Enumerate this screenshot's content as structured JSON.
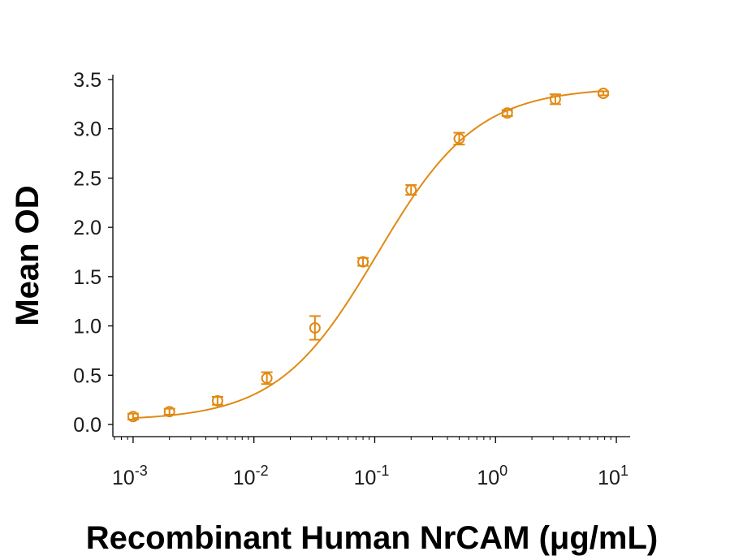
{
  "chart_data": {
    "type": "scatter",
    "title": "",
    "xlabel": "Recombinant Human NrCAM (μg/mL)",
    "ylabel": "Mean OD",
    "xscale": "log",
    "xlim": [
      0.00068,
      13
    ],
    "ylim": [
      -0.12,
      3.6
    ],
    "grid": false,
    "legend": "none",
    "color": "#E08A14",
    "yticks": [
      {
        "value": 0.0,
        "label": "0.0"
      },
      {
        "value": 0.5,
        "label": "0.5"
      },
      {
        "value": 1.0,
        "label": "1.0"
      },
      {
        "value": 1.5,
        "label": "1.5"
      },
      {
        "value": 2.0,
        "label": "2.0"
      },
      {
        "value": 2.5,
        "label": "2.5"
      },
      {
        "value": 3.0,
        "label": "3.0"
      },
      {
        "value": 3.5,
        "label": "3.5"
      }
    ],
    "xticks": [
      {
        "value": 0.001,
        "base": "10",
        "exp": "-3"
      },
      {
        "value": 0.01,
        "base": "10",
        "exp": "-2"
      },
      {
        "value": 0.1,
        "base": "10",
        "exp": "-1"
      },
      {
        "value": 1,
        "base": "10",
        "exp": "0"
      },
      {
        "value": 10,
        "base": "10",
        "exp": "1"
      }
    ],
    "series": [
      {
        "points": [
          {
            "x": 0.001,
            "y": 0.08,
            "err": 0.03
          },
          {
            "x": 0.002,
            "y": 0.13,
            "err": 0.03
          },
          {
            "x": 0.005,
            "y": 0.24,
            "err": 0.04
          },
          {
            "x": 0.0128,
            "y": 0.47,
            "err": 0.06
          },
          {
            "x": 0.032,
            "y": 0.98,
            "err": 0.12
          },
          {
            "x": 0.08,
            "y": 1.65,
            "err": 0.04
          },
          {
            "x": 0.2,
            "y": 2.38,
            "err": 0.05
          },
          {
            "x": 0.5,
            "y": 2.9,
            "err": 0.06
          },
          {
            "x": 1.25,
            "y": 3.16,
            "err": 0.03
          },
          {
            "x": 3.125,
            "y": 3.3,
            "err": 0.05
          },
          {
            "x": 7.8,
            "y": 3.36,
            "err": 0.02
          }
        ]
      }
    ]
  }
}
